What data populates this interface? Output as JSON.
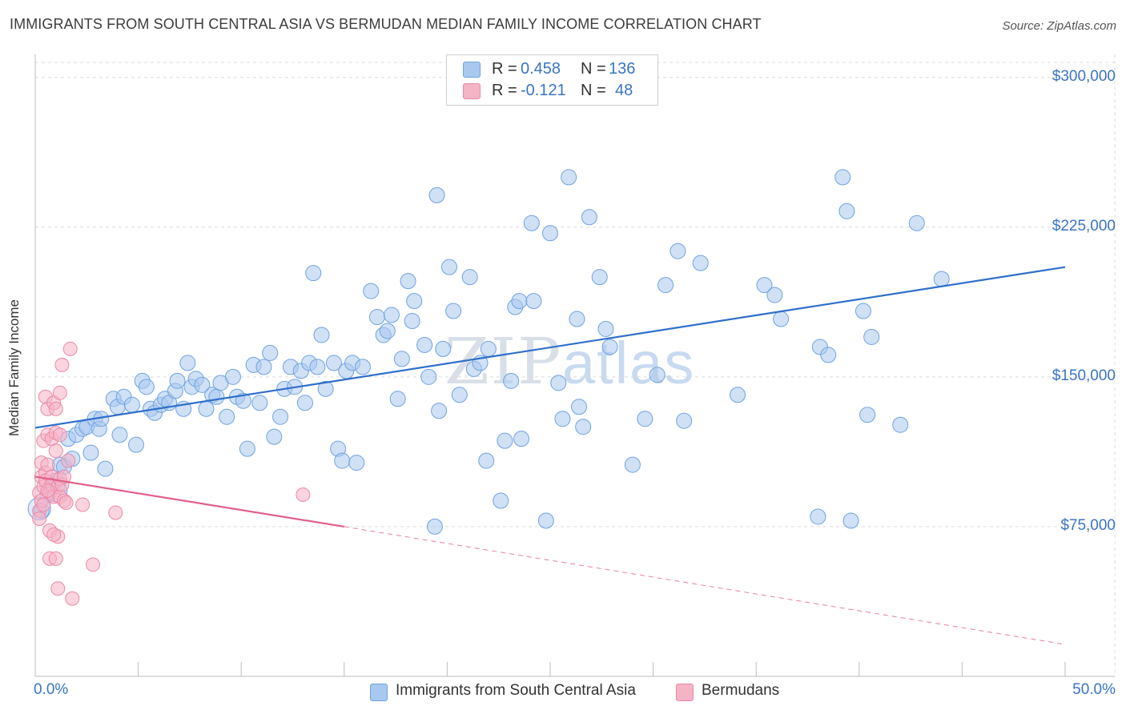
{
  "title": "IMMIGRANTS FROM SOUTH CENTRAL ASIA VS BERMUDAN MEDIAN FAMILY INCOME CORRELATION CHART",
  "source": "Source: ZipAtlas.com",
  "watermark": {
    "zip": "ZIP",
    "atlas": "atlas"
  },
  "legend": {
    "rows": [
      {
        "r_label": "R =",
        "r_value": "0.458",
        "n_label": "N =",
        "n_value": "136",
        "color": "#a9c8ef"
      },
      {
        "r_label": "R =",
        "r_value": "-0.121",
        "n_label": "N =",
        "n_value": "48",
        "color": "#f5b3c6"
      }
    ]
  },
  "bottom_legend": [
    {
      "label": "Immigrants from South Central Asia",
      "color": "#a9c8ef"
    },
    {
      "label": "Bermudans",
      "color": "#f5b3c6"
    }
  ],
  "chart_data": {
    "type": "scatter",
    "title": "IMMIGRANTS FROM SOUTH CENTRAL ASIA VS BERMUDAN MEDIAN FAMILY INCOME CORRELATION CHART",
    "xlabel": "",
    "ylabel": "Median Family Income",
    "xlim": [
      0,
      50
    ],
    "ylim": [
      0,
      307500
    ],
    "x_tick_labels": [
      "0.0%",
      "50.0%"
    ],
    "y_ticks": [
      75000,
      150000,
      225000,
      300000
    ],
    "y_tick_labels": [
      "$75,000",
      "$150,000",
      "$225,000",
      "$300,000"
    ],
    "grid": true,
    "series": [
      {
        "name": "Immigrants from South Central Asia",
        "color": "#6fa2e0",
        "fill": "#a9c8ef",
        "trend": {
          "x": [
            0,
            50
          ],
          "y": [
            124500,
            205000
          ],
          "style": "solid",
          "color": "#2f6fca"
        },
        "points": [
          [
            0.3,
            83000
          ],
          [
            0.6,
            91000
          ],
          [
            0.8,
            95000
          ],
          [
            1.0,
            98000
          ],
          [
            1.2,
            106000
          ],
          [
            1.4,
            105000
          ],
          [
            1.6,
            119000
          ],
          [
            1.8,
            109000
          ],
          [
            2.0,
            121000
          ],
          [
            2.3,
            124000
          ],
          [
            2.5,
            125000
          ],
          [
            2.7,
            112000
          ],
          [
            2.9,
            129000
          ],
          [
            3.1,
            124000
          ],
          [
            3.2,
            129000
          ],
          [
            3.4,
            104000
          ],
          [
            3.8,
            139000
          ],
          [
            4.0,
            135000
          ],
          [
            4.1,
            121000
          ],
          [
            4.3,
            140000
          ],
          [
            4.7,
            136000
          ],
          [
            4.9,
            116000
          ],
          [
            5.2,
            148000
          ],
          [
            5.4,
            145000
          ],
          [
            5.6,
            134000
          ],
          [
            5.8,
            132000
          ],
          [
            6.1,
            136000
          ],
          [
            6.3,
            139000
          ],
          [
            6.5,
            137000
          ],
          [
            6.8,
            143000
          ],
          [
            6.9,
            148000
          ],
          [
            7.2,
            134000
          ],
          [
            7.4,
            157000
          ],
          [
            7.6,
            145000
          ],
          [
            7.8,
            149000
          ],
          [
            8.1,
            146000
          ],
          [
            8.3,
            134000
          ],
          [
            8.6,
            141000
          ],
          [
            8.8,
            140000
          ],
          [
            9.0,
            147000
          ],
          [
            9.3,
            130000
          ],
          [
            9.6,
            150000
          ],
          [
            9.8,
            140000
          ],
          [
            10.1,
            138000
          ],
          [
            10.3,
            114000
          ],
          [
            10.6,
            156000
          ],
          [
            10.9,
            137000
          ],
          [
            11.1,
            155000
          ],
          [
            11.4,
            162000
          ],
          [
            11.6,
            120000
          ],
          [
            11.9,
            130000
          ],
          [
            12.1,
            144000
          ],
          [
            12.4,
            155000
          ],
          [
            12.6,
            145000
          ],
          [
            12.9,
            153000
          ],
          [
            13.1,
            137000
          ],
          [
            13.3,
            157000
          ],
          [
            13.5,
            202000
          ],
          [
            13.7,
            155000
          ],
          [
            13.9,
            171000
          ],
          [
            14.1,
            144000
          ],
          [
            14.5,
            157000
          ],
          [
            14.7,
            114000
          ],
          [
            14.9,
            108000
          ],
          [
            15.1,
            153000
          ],
          [
            15.4,
            157000
          ],
          [
            15.6,
            107000
          ],
          [
            15.9,
            155000
          ],
          [
            16.3,
            193000
          ],
          [
            16.6,
            180000
          ],
          [
            16.9,
            171000
          ],
          [
            17.1,
            173000
          ],
          [
            17.3,
            181000
          ],
          [
            17.6,
            139000
          ],
          [
            17.8,
            159000
          ],
          [
            18.1,
            198000
          ],
          [
            18.3,
            178000
          ],
          [
            18.4,
            188000
          ],
          [
            18.9,
            166000
          ],
          [
            19.1,
            150000
          ],
          [
            19.6,
            133000
          ],
          [
            19.8,
            164000
          ],
          [
            20.1,
            205000
          ],
          [
            20.3,
            183000
          ],
          [
            20.6,
            141000
          ],
          [
            21.1,
            200000
          ],
          [
            21.3,
            154000
          ],
          [
            21.6,
            157000
          ],
          [
            19.5,
            241000
          ],
          [
            22.0,
            164000
          ],
          [
            21.9,
            108000
          ],
          [
            22.6,
            88000
          ],
          [
            22.8,
            118000
          ],
          [
            23.1,
            148000
          ],
          [
            23.3,
            185000
          ],
          [
            23.5,
            188000
          ],
          [
            23.6,
            119000
          ],
          [
            24.1,
            227000
          ],
          [
            24.2,
            188000
          ],
          [
            24.8,
            78000
          ],
          [
            25.0,
            222000
          ],
          [
            25.4,
            147000
          ],
          [
            25.6,
            129000
          ],
          [
            25.9,
            250000
          ],
          [
            26.3,
            179000
          ],
          [
            26.4,
            135000
          ],
          [
            26.6,
            125000
          ],
          [
            26.9,
            230000
          ],
          [
            27.4,
            200000
          ],
          [
            27.7,
            174000
          ],
          [
            27.9,
            165000
          ],
          [
            19.4,
            75000
          ],
          [
            29.0,
            106000
          ],
          [
            29.6,
            129000
          ],
          [
            30.2,
            151000
          ],
          [
            30.6,
            196000
          ],
          [
            31.2,
            213000
          ],
          [
            31.5,
            128000
          ],
          [
            32.3,
            207000
          ],
          [
            34.1,
            141000
          ],
          [
            35.4,
            196000
          ],
          [
            35.9,
            191000
          ],
          [
            36.2,
            179000
          ],
          [
            38.0,
            80000
          ],
          [
            38.1,
            165000
          ],
          [
            38.5,
            161000
          ],
          [
            39.2,
            250000
          ],
          [
            39.4,
            233000
          ],
          [
            39.6,
            78000
          ],
          [
            40.2,
            183000
          ],
          [
            40.4,
            131000
          ],
          [
            40.6,
            170000
          ],
          [
            42.0,
            126000
          ],
          [
            42.8,
            227000
          ],
          [
            44.0,
            199000
          ]
        ]
      },
      {
        "name": "Bermudans",
        "color": "#ec88a8",
        "fill": "#f5b3c6",
        "trend": {
          "x": [
            0,
            15
          ],
          "y": [
            100000,
            75000
          ],
          "style": "solid",
          "color": "#e0608a",
          "extension": {
            "x": [
              15,
              50
            ],
            "y": [
              75000,
              16000
            ],
            "style": "dashed"
          }
        },
        "points": [
          [
            0.2,
            83000
          ],
          [
            0.2,
            92000
          ],
          [
            0.3,
            88000
          ],
          [
            0.3,
            107000
          ],
          [
            0.3,
            100000
          ],
          [
            0.4,
            118000
          ],
          [
            0.4,
            95000
          ],
          [
            0.4,
            86000
          ],
          [
            0.5,
            140000
          ],
          [
            0.5,
            102000
          ],
          [
            0.5,
            98000
          ],
          [
            0.6,
            134000
          ],
          [
            0.6,
            121000
          ],
          [
            0.6,
            106000
          ],
          [
            0.7,
            92000
          ],
          [
            0.7,
            73000
          ],
          [
            0.7,
            59000
          ],
          [
            0.8,
            119000
          ],
          [
            0.8,
            100000
          ],
          [
            0.8,
            96000
          ],
          [
            0.9,
            137000
          ],
          [
            0.9,
            90000
          ],
          [
            1.0,
            134000
          ],
          [
            1.0,
            122000
          ],
          [
            1.0,
            113000
          ],
          [
            1.0,
            59000
          ],
          [
            1.1,
            95000
          ],
          [
            1.1,
            70000
          ],
          [
            1.1,
            44000
          ],
          [
            1.2,
            142000
          ],
          [
            1.2,
            121000
          ],
          [
            1.2,
            99000
          ],
          [
            1.2,
            90000
          ],
          [
            1.3,
            156000
          ],
          [
            1.3,
            96000
          ],
          [
            1.4,
            88000
          ],
          [
            1.4,
            100000
          ],
          [
            1.5,
            87000
          ],
          [
            1.6,
            108000
          ],
          [
            1.7,
            164000
          ],
          [
            1.8,
            39000
          ],
          [
            2.3,
            86000
          ],
          [
            2.8,
            56000
          ],
          [
            3.9,
            82000
          ],
          [
            13.0,
            91000
          ],
          [
            0.2,
            79000
          ],
          [
            0.6,
            93000
          ],
          [
            0.9,
            71000
          ]
        ]
      }
    ]
  }
}
